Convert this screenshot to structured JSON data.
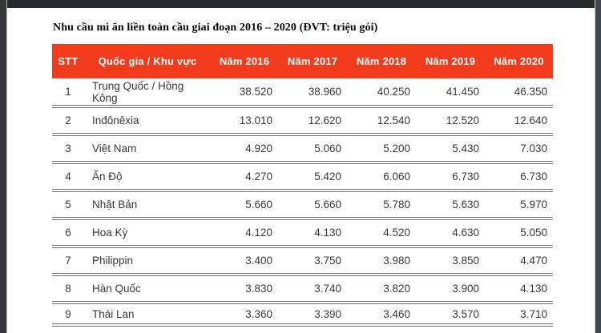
{
  "title": "Nhu cầu mì ăn liền toàn cầu giai đoạn 2016 – 2020 (ĐVT: triệu gói)",
  "table": {
    "columns": [
      "STT",
      "Quốc gia / Khu vực",
      "Năm 2016",
      "Năm 2017",
      "Năm 2018",
      "Năm 2019",
      "Năm 2020"
    ],
    "rows": [
      {
        "stt": "1",
        "country": "Trung Quốc / Hồng Kông",
        "values": [
          "38.520",
          "38.960",
          "40.250",
          "41.450",
          "46.350"
        ]
      },
      {
        "stt": "2",
        "country": "Inđônêxia",
        "values": [
          "13.010",
          "12.620",
          "12.540",
          "12.520",
          "12.640"
        ]
      },
      {
        "stt": "3",
        "country": "Việt Nam",
        "values": [
          "4.920",
          "5.060",
          "5.200",
          "5.430",
          "7.030"
        ]
      },
      {
        "stt": "4",
        "country": "Ấn Độ",
        "values": [
          "4.270",
          "5.420",
          "6.060",
          "6.730",
          "6.730"
        ]
      },
      {
        "stt": "5",
        "country": "Nhật Bản",
        "values": [
          "5.660",
          "5.660",
          "5.780",
          "5.630",
          "5.970"
        ]
      },
      {
        "stt": "6",
        "country": "Hoa Kỳ",
        "values": [
          "4.120",
          "4.130",
          "4.520",
          "4.630",
          "5.050"
        ]
      },
      {
        "stt": "7",
        "country": "Philippin",
        "values": [
          "3.400",
          "3.750",
          "3.980",
          "3.850",
          "4.470"
        ]
      },
      {
        "stt": "8",
        "country": "Hàn Quốc",
        "values": [
          "3.830",
          "3.740",
          "3.820",
          "3.900",
          "4.130"
        ]
      },
      {
        "stt": "9",
        "country": "Thái Lan",
        "values": [
          "3.360",
          "3.390",
          "3.460",
          "3.570",
          "3.710"
        ]
      }
    ]
  },
  "chart_data": {
    "type": "table",
    "title": "Nhu cầu mì ăn liền toàn cầu giai đoạn 2016 – 2020 (ĐVT: triệu gói)",
    "categories": [
      "Năm 2016",
      "Năm 2017",
      "Năm 2018",
      "Năm 2019",
      "Năm 2020"
    ],
    "series": [
      {
        "name": "Trung Quốc / Hồng Kông",
        "values": [
          38520,
          38960,
          40250,
          41450,
          46350
        ]
      },
      {
        "name": "Inđônêxia",
        "values": [
          13010,
          12620,
          12540,
          12520,
          12640
        ]
      },
      {
        "name": "Việt Nam",
        "values": [
          4920,
          5060,
          5200,
          5430,
          7030
        ]
      },
      {
        "name": "Ấn Độ",
        "values": [
          4270,
          5420,
          6060,
          6730,
          6730
        ]
      },
      {
        "name": "Nhật Bản",
        "values": [
          5660,
          5660,
          5780,
          5630,
          5970
        ]
      },
      {
        "name": "Hoa Kỳ",
        "values": [
          4120,
          4130,
          4520,
          4630,
          5050
        ]
      },
      {
        "name": "Philippin",
        "values": [
          3400,
          3750,
          3980,
          3850,
          4470
        ]
      },
      {
        "name": "Hàn Quốc",
        "values": [
          3830,
          3740,
          3820,
          3900,
          4130
        ]
      },
      {
        "name": "Thái Lan",
        "values": [
          3360,
          3390,
          3460,
          3570,
          3710
        ]
      }
    ],
    "unit": "triệu gói"
  },
  "colors": {
    "header_bg": "#f23a1c",
    "header_text": "#ffffff",
    "body_text": "#38383a",
    "separator": "#6f6f6f",
    "title_text": "#050505",
    "frame_dark": "#35373a"
  }
}
